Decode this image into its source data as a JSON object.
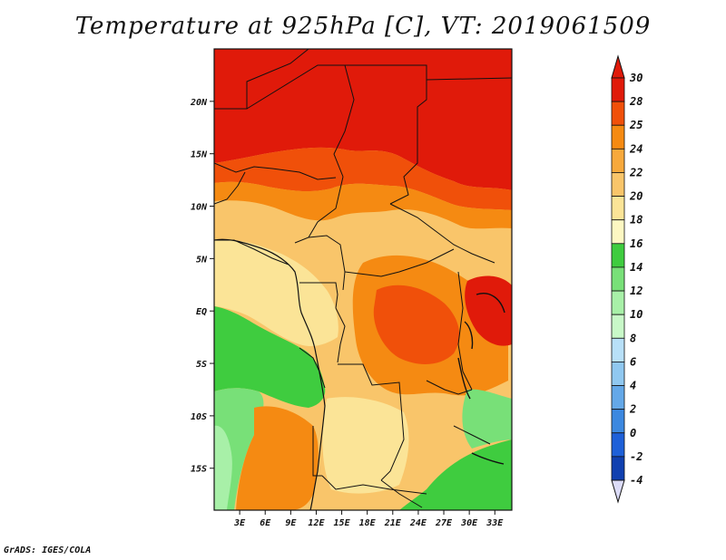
{
  "title": "Temperature at 925hPa [C], VT: 2019061509",
  "credit": "GrADS: IGES/COLA",
  "map": {
    "lon_range": [
      0,
      35
    ],
    "lat_range": [
      -19,
      25
    ],
    "lon_ticks": [
      "3E",
      "6E",
      "9E",
      "12E",
      "15E",
      "18E",
      "21E",
      "24E",
      "27E",
      "30E",
      "33E"
    ],
    "lat_ticks": [
      "20N",
      "15N",
      "10N",
      "5N",
      "EQ",
      "5S",
      "10S",
      "15S"
    ],
    "lon_tick_values": [
      3,
      6,
      9,
      12,
      15,
      18,
      21,
      24,
      27,
      30,
      33
    ],
    "lat_tick_values": [
      20,
      15,
      10,
      5,
      0,
      -5,
      -10,
      -15
    ]
  },
  "colorbar": {
    "labels": [
      "30",
      "28",
      "25",
      "24",
      "22",
      "20",
      "18",
      "16",
      "14",
      "12",
      "10",
      "8",
      "6",
      "4",
      "2",
      "0",
      "-2",
      "-4"
    ],
    "colors": [
      "#e01a0a",
      "#f0500a",
      "#f58a12",
      "#f7a93c",
      "#f9c56a",
      "#fbe497",
      "#fdf7c2",
      "#3fcc3f",
      "#78e078",
      "#a8f0a8",
      "#c8f8c8",
      "#b8e0f8",
      "#90c8f0",
      "#64a8e8",
      "#3c88e0",
      "#1e60d8",
      "#1040b0",
      "#0a1a78"
    ],
    "over_color": "#e01a0a",
    "under_color": "#dcdcf8"
  }
}
